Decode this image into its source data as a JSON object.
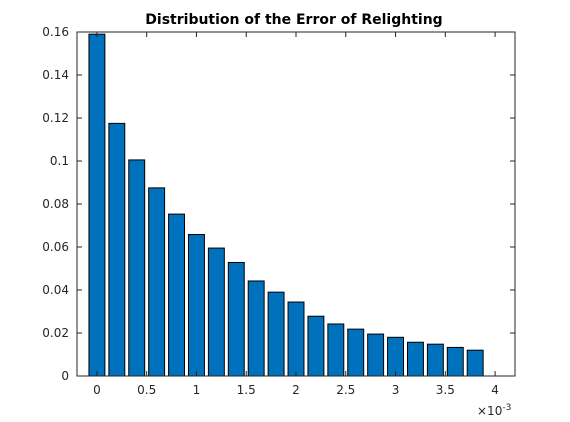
{
  "chart_data": {
    "type": "bar",
    "title": "Distribution of the Error of Relighting",
    "xlabel": "",
    "ylabel": "",
    "x_exponent": "×10",
    "x_exponent_power": "-3",
    "x": [
      0,
      0.2,
      0.4,
      0.6,
      0.8,
      1.0,
      1.2,
      1.4,
      1.6,
      1.8,
      2.0,
      2.2,
      2.4,
      2.6,
      2.8,
      3.0,
      3.2,
      3.4,
      3.6,
      3.8
    ],
    "values": [
      0.159,
      0.1175,
      0.1005,
      0.0875,
      0.0753,
      0.0658,
      0.0595,
      0.0528,
      0.0442,
      0.039,
      0.0344,
      0.0278,
      0.0242,
      0.0218,
      0.0195,
      0.018,
      0.0157,
      0.0148,
      0.0133,
      0.012
    ],
    "xlim": [
      -0.2,
      4.2
    ],
    "ylim": [
      0,
      0.16
    ],
    "xticks": [
      0,
      0.5,
      1,
      1.5,
      2,
      2.5,
      3,
      3.5,
      4
    ],
    "xtick_labels": [
      "0",
      "0.5",
      "1",
      "1.5",
      "2",
      "2.5",
      "3",
      "3.5",
      "4"
    ],
    "yticks": [
      0,
      0.02,
      0.04,
      0.06,
      0.08,
      0.1,
      0.12,
      0.14,
      0.16
    ],
    "ytick_labels": [
      "0",
      "0.02",
      "0.04",
      "0.06",
      "0.08",
      "0.1",
      "0.12",
      "0.14",
      "0.16"
    ],
    "grid": false,
    "legend": "none",
    "bar_color": "#0072bd",
    "edge_color": "#000000"
  }
}
